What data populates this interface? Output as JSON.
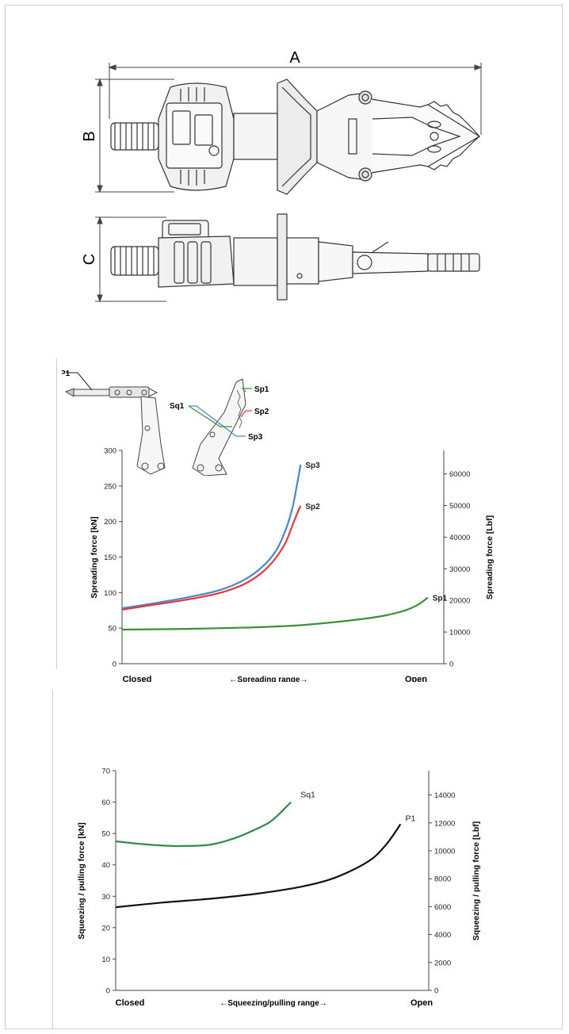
{
  "dimensions": {
    "label_a": "A",
    "label_b": "B",
    "label_c": "C"
  },
  "colors": {
    "sp1": "#3a8f3a",
    "sp2": "#e03a3a",
    "sp3": "#4a86c8",
    "sq1": "#2e8b4a",
    "p1": "#111111",
    "line": "#444444"
  },
  "inset": {
    "labels": [
      "P1",
      "Sq1",
      "Sp1",
      "Sp2",
      "Sp3"
    ]
  },
  "chart_data": [
    {
      "type": "line",
      "ylabel": "Spreading force [kN]",
      "y2label": "Spreading force [Lbf]",
      "xticklabels": [
        "Closed",
        "←Spreading range→",
        "Open"
      ],
      "ylim": [
        0,
        300
      ],
      "yticks": [
        0,
        50,
        100,
        150,
        200,
        250,
        300
      ],
      "y2lim": [
        0,
        67443
      ],
      "y2ticks": [
        0,
        10000,
        20000,
        30000,
        40000,
        50000,
        60000
      ],
      "xlim": [
        0,
        1
      ],
      "series": [
        {
          "name": "Sp3",
          "color": "#4a86c8",
          "x": [
            0,
            0.1,
            0.2,
            0.3,
            0.38,
            0.44,
            0.48,
            0.51,
            0.53,
            0.545,
            0.555
          ],
          "y": [
            78,
            85,
            93,
            103,
            118,
            138,
            160,
            190,
            220,
            255,
            280
          ]
        },
        {
          "name": "Sp2",
          "color": "#e03a3a",
          "x": [
            0,
            0.1,
            0.2,
            0.3,
            0.38,
            0.44,
            0.48,
            0.51,
            0.53,
            0.545,
            0.555
          ],
          "y": [
            76,
            83,
            90,
            99,
            112,
            130,
            150,
            172,
            195,
            212,
            222
          ]
        },
        {
          "name": "Sp1",
          "color": "#3a8f3a",
          "x": [
            0,
            0.2,
            0.4,
            0.55,
            0.65,
            0.75,
            0.82,
            0.88,
            0.92,
            0.95
          ],
          "y": [
            48,
            49,
            51,
            54,
            58,
            63,
            68,
            75,
            83,
            93
          ]
        }
      ]
    },
    {
      "type": "line",
      "ylabel": "Squeezing / pulling force [kN]",
      "y2label": "Squeezing / pulling force [Lbf]",
      "xticklabels": [
        "Closed",
        "←Squeezing/pulling range→",
        "Open"
      ],
      "ylim": [
        0,
        70
      ],
      "yticks": [
        0,
        10,
        20,
        30,
        40,
        50,
        60,
        70
      ],
      "y2lim": [
        0,
        15737
      ],
      "y2ticks": [
        0,
        2000,
        4000,
        6000,
        8000,
        10000,
        12000,
        14000
      ],
      "xlim": [
        0,
        1
      ],
      "series": [
        {
          "name": "Sq1",
          "color": "#2e8b4a",
          "x": [
            0,
            0.1,
            0.2,
            0.3,
            0.38,
            0.44,
            0.49,
            0.52,
            0.545,
            0.56
          ],
          "y": [
            47.5,
            46.5,
            46,
            46.4,
            48.5,
            51,
            53.5,
            56,
            58.5,
            60
          ]
        },
        {
          "name": "P1",
          "color": "#111111",
          "x": [
            0,
            0.15,
            0.3,
            0.45,
            0.58,
            0.68,
            0.76,
            0.82,
            0.86,
            0.89,
            0.91
          ],
          "y": [
            26.5,
            28,
            29.2,
            30.8,
            32.8,
            35.2,
            38.5,
            42,
            46,
            50,
            53
          ]
        }
      ]
    }
  ]
}
